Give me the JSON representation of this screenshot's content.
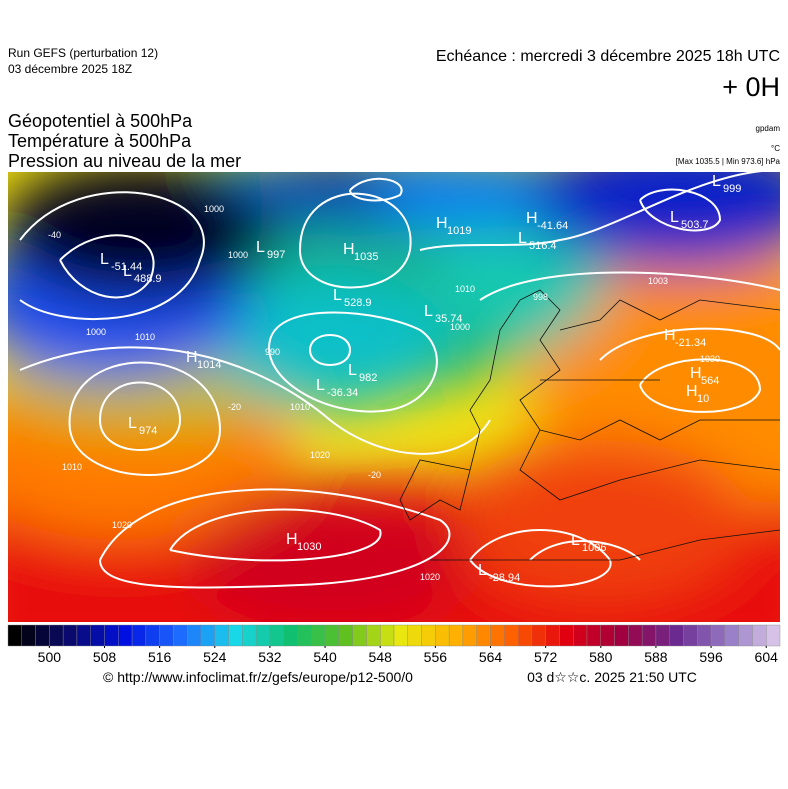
{
  "header": {
    "run": "Run GEFS (perturbation 12)",
    "date": "03 décembre 2025 18Z",
    "echeance": "Echéance : mercredi 3 décembre 2025 18h UTC",
    "offset": "+ 0H",
    "fields": [
      "Géopotentiel à 500hPa",
      "Température à 500hPa",
      "Pression au niveau de la mer"
    ],
    "units": [
      "gpdam",
      "°C",
      "[Max 1035.5 | Min 973.6] hPa"
    ]
  },
  "map": {
    "centers": [
      {
        "symbol": "H",
        "value": "1019"
      },
      {
        "symbol": "H",
        "value": "1035"
      },
      {
        "symbol": "L",
        "value": "997"
      },
      {
        "symbol": "L",
        "value": "-51.44"
      },
      {
        "symbol": "L",
        "value": "488.9"
      },
      {
        "symbol": "H",
        "value": "1014"
      },
      {
        "symbol": "L",
        "value": "974"
      },
      {
        "symbol": "L",
        "value": "982"
      },
      {
        "symbol": "L",
        "value": "-36.34"
      },
      {
        "symbol": "L",
        "value": "528.9"
      },
      {
        "symbol": "L",
        "value": "35.74"
      },
      {
        "symbol": "H",
        "value": "1030"
      },
      {
        "symbol": "L",
        "value": "1006"
      },
      {
        "symbol": "L",
        "value": "-28.94"
      },
      {
        "symbol": "H",
        "value": "-21.34"
      },
      {
        "symbol": "H",
        "value": "564"
      },
      {
        "symbol": "H",
        "value": "10"
      },
      {
        "symbol": "L",
        "value": "503.7"
      },
      {
        "symbol": "H",
        "value": "-41.64"
      },
      {
        "symbol": "L",
        "value": "516.4"
      },
      {
        "symbol": "L",
        "value": "999"
      }
    ],
    "isobars": [
      "1000",
      "1000",
      "1010",
      "1000",
      "1010",
      "1020",
      "1010",
      "1020",
      "1020",
      "1000",
      "1010",
      "1003",
      "998",
      "1030",
      "990",
      "-20",
      "-20",
      "-40"
    ]
  },
  "colorbar": {
    "range": [
      494,
      606
    ],
    "ticks": [
      500,
      508,
      516,
      524,
      532,
      540,
      548,
      556,
      564,
      572,
      580,
      588,
      596,
      604
    ],
    "colors": [
      "#000000",
      "#0a0a6e",
      "#0010e0",
      "#1e6cff",
      "#18d8e8",
      "#10c070",
      "#60c020",
      "#e8e810",
      "#ffb000",
      "#ff6000",
      "#e00010",
      "#a00040",
      "#6a2a90",
      "#9a80c8",
      "#e8d8f0"
    ]
  },
  "footer": {
    "url": "© http://www.infoclimat.fr/z/gefs/europe/p12-500/0",
    "time": "03 d☆☆c. 2025 21:50 UTC"
  }
}
